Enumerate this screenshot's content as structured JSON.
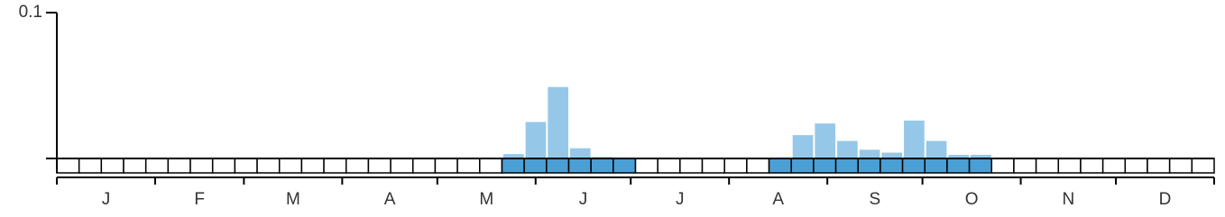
{
  "chart_data": {
    "type": "bar",
    "values": [
      0,
      0,
      0,
      0,
      0,
      0,
      0,
      0,
      0,
      0,
      0,
      0,
      0,
      0,
      0,
      0,
      0,
      0,
      0,
      0,
      0.003,
      0.025,
      0.049,
      0.007,
      0.001,
      0.0005,
      0,
      0,
      0,
      0,
      0,
      0,
      0.0005,
      0.016,
      0.024,
      0.012,
      0.006,
      0.004,
      0.026,
      0.012,
      0.0025,
      0.0025,
      0,
      0,
      0,
      0,
      0,
      0,
      0,
      0,
      0,
      0
    ],
    "months": [
      "J",
      "F",
      "M",
      "A",
      "M",
      "J",
      "J",
      "A",
      "S",
      "O",
      "N",
      "D"
    ],
    "ylim": [
      0,
      0.1
    ],
    "yticks": [
      {
        "value": 0,
        "label": null
      },
      0.1
    ],
    "color": "#95c8e8",
    "presence_color": "#4a9fd5"
  }
}
